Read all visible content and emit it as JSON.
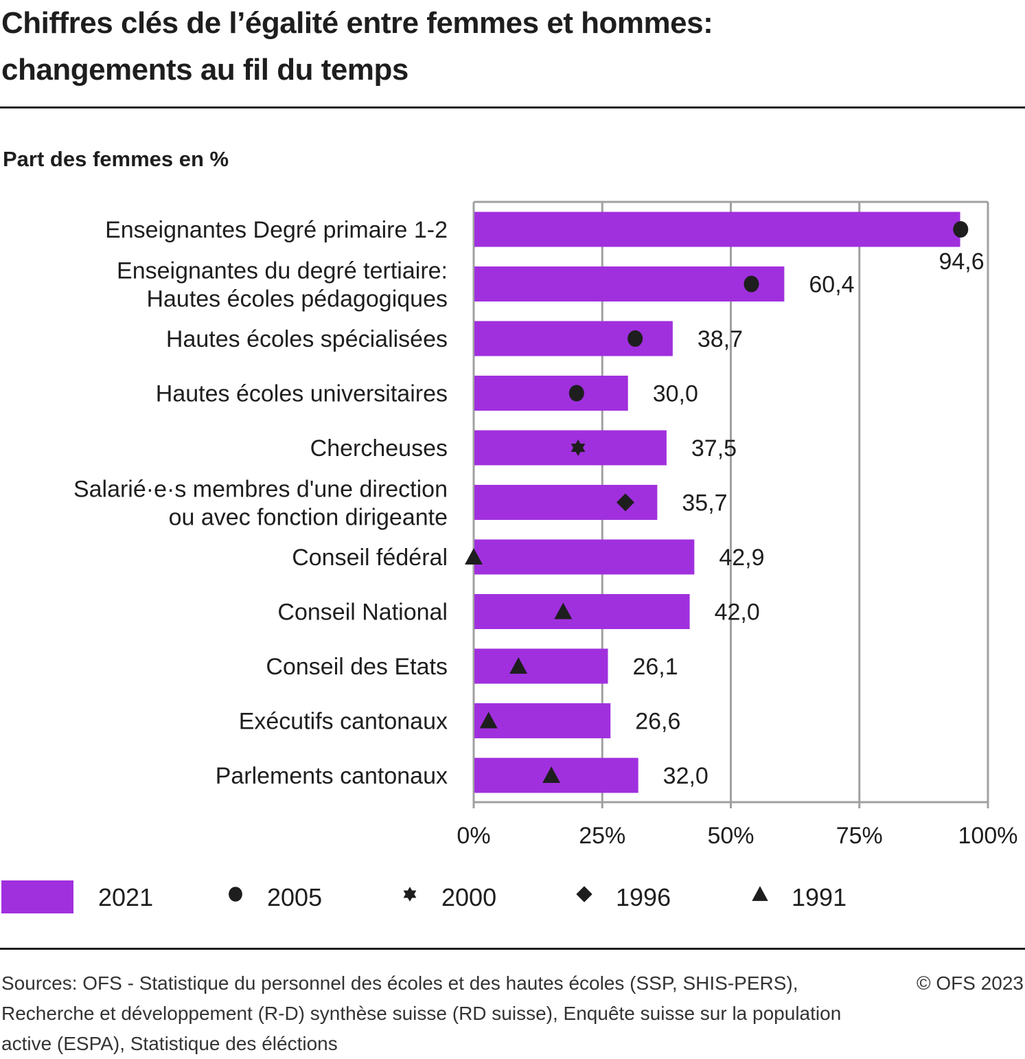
{
  "header": {
    "title_line1": "Chiffres clés de l’égalité entre femmes et hommes:",
    "title_line2": "changements au fil du temps",
    "subtitle": "Part des femmes en %"
  },
  "chart_data": {
    "type": "bar",
    "orientation": "horizontal",
    "title": "Chiffres clés de l’égalité entre femmes et hommes: changements au fil du temps",
    "xlabel": "",
    "ylabel": "Part des femmes en %",
    "xlim": [
      0,
      100
    ],
    "x_ticks": [
      "0%",
      "25%",
      "50%",
      "75%",
      "100%"
    ],
    "x_tick_values": [
      0,
      25,
      50,
      75,
      100
    ],
    "grid": true,
    "legend_position": "bottom",
    "colors": {
      "bar": "#a030de",
      "marker": "#1e1e1e",
      "grid": "#a0a0a0"
    },
    "categories": [
      [
        "Enseignantes Degré primaire 1-2"
      ],
      [
        "Enseignantes du degré tertiaire:",
        "Hautes écoles pédagogiques"
      ],
      [
        "Hautes écoles spécialisées"
      ],
      [
        "Hautes écoles universitaires"
      ],
      [
        "Chercheuses"
      ],
      [
        "Salarié·e·s membres d'une direction",
        "ou avec fonction dirigeante"
      ],
      [
        "Conseil fédéral"
      ],
      [
        "Conseil National"
      ],
      [
        "Conseil des Etats"
      ],
      [
        "Exécutifs cantonaux"
      ],
      [
        "Parlements cantonaux"
      ]
    ],
    "series": [
      {
        "name": "2021",
        "kind": "bar",
        "values": [
          94.6,
          60.4,
          38.7,
          30.0,
          37.5,
          35.7,
          42.9,
          42.0,
          26.1,
          26.6,
          32.0
        ],
        "labels": [
          "94,6",
          "60,4",
          "38,7",
          "30,0",
          "37,5",
          "35,7",
          "42,9",
          "42,0",
          "26,1",
          "26,6",
          "32,0"
        ]
      },
      {
        "name": "2005",
        "kind": "marker",
        "marker": "circle",
        "values": [
          94.7,
          54.0,
          31.4,
          20.0,
          null,
          null,
          null,
          null,
          null,
          null,
          null
        ]
      },
      {
        "name": "2000",
        "kind": "marker",
        "marker": "star",
        "values": [
          null,
          null,
          null,
          null,
          20.3,
          null,
          null,
          null,
          null,
          null,
          null
        ]
      },
      {
        "name": "1996",
        "kind": "marker",
        "marker": "diamond",
        "values": [
          null,
          null,
          null,
          null,
          null,
          29.5,
          null,
          null,
          null,
          null,
          null
        ]
      },
      {
        "name": "1991",
        "kind": "marker",
        "marker": "triangle",
        "values": [
          null,
          null,
          null,
          null,
          null,
          null,
          0.0,
          17.4,
          8.7,
          2.9,
          15.1
        ]
      }
    ]
  },
  "footer": {
    "sources": "Sources: OFS - Statistique du personnel des écoles et des hautes écoles (SSP, SHIS-PERS), Recherche et développement (R-D) synthèse suisse (RD suisse), Enquête suisse sur la population active (ESPA), Statistique des éléctions",
    "copyright": "© OFS 2023"
  }
}
